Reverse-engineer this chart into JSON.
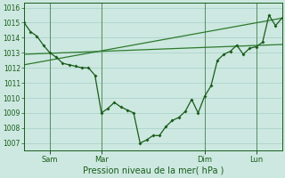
{
  "xlabel": "Pression niveau de la mer( hPa )",
  "bg_color": "#cce8e0",
  "grid_color": "#a8cfc8",
  "line_dark": "#1a5c1a",
  "line_mid": "#2d7a2d",
  "xlim": [
    0,
    80
  ],
  "ylim": [
    1006.5,
    1016.3
  ],
  "yticks": [
    1007,
    1008,
    1009,
    1010,
    1011,
    1012,
    1013,
    1014,
    1015,
    1016
  ],
  "xtick_labels": [
    "Sam",
    "Mar",
    "Dim",
    "Lun"
  ],
  "xtick_pos": [
    8,
    24,
    56,
    72
  ],
  "smooth_flat": {
    "x": [
      0,
      80
    ],
    "y": [
      1012.9,
      1013.55
    ]
  },
  "smooth_rise": {
    "x": [
      0,
      80
    ],
    "y": [
      1012.2,
      1015.3
    ]
  },
  "main": {
    "x": [
      0,
      2,
      4,
      6,
      8,
      10,
      12,
      14,
      16,
      18,
      20,
      22,
      24,
      26,
      28,
      30,
      32,
      34,
      36,
      38,
      40,
      42,
      44,
      46,
      48,
      50,
      52,
      54,
      56,
      58,
      60,
      62,
      64,
      66,
      68,
      70,
      72,
      74,
      76,
      78,
      80
    ],
    "y": [
      1015.0,
      1014.4,
      1014.1,
      1013.5,
      1013.0,
      1012.7,
      1012.3,
      1012.2,
      1012.1,
      1012.0,
      1012.0,
      1011.5,
      1009.0,
      1009.3,
      1009.7,
      1009.4,
      1009.2,
      1009.0,
      1007.0,
      1007.2,
      1007.5,
      1007.5,
      1008.1,
      1008.5,
      1008.7,
      1009.1,
      1009.9,
      1009.0,
      1010.1,
      1010.8,
      1012.5,
      1012.9,
      1013.1,
      1013.5,
      1012.9,
      1013.3,
      1013.4,
      1013.7,
      1015.5,
      1014.8,
      1015.3
    ]
  }
}
